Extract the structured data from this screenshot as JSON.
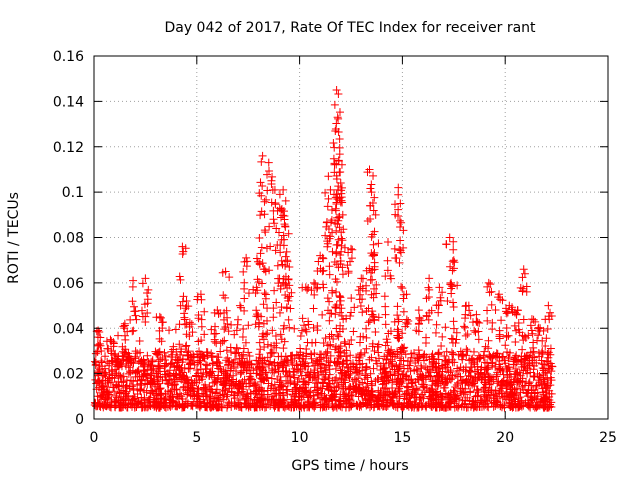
{
  "chart_data": {
    "type": "scatter",
    "title": "Day 042 of 2017, Rate Of TEC Index for receiver rant",
    "xlabel": "GPS time / hours",
    "ylabel": "ROTI / TECUs",
    "xlim": [
      0,
      25
    ],
    "ylim": [
      0,
      0.16
    ],
    "xticks": [
      0,
      5,
      10,
      15,
      20,
      25
    ],
    "xtick_labels": [
      "0",
      "5",
      "10",
      "15",
      "20",
      "25"
    ],
    "yticks": [
      0,
      0.02,
      0.04,
      0.06,
      0.08,
      0.1,
      0.12,
      0.14,
      0.16
    ],
    "ytick_labels": [
      "0",
      "0.02",
      "0.04",
      "0.06",
      "0.08",
      "0.1",
      "0.12",
      "0.14",
      "0.16"
    ],
    "grid": true,
    "marker": "+",
    "color": "#ff0000",
    "series": [
      {
        "name": "ROTI",
        "x": [
          0.2,
          0.8,
          1.5,
          1.9,
          2.5,
          3.2,
          4.3,
          4.5,
          5.2,
          6.0,
          6.4,
          7.1,
          7.4,
          7.9,
          8.1,
          8.2,
          8.5,
          8.8,
          9.1,
          9.2,
          9.3,
          9.5,
          10.3,
          10.7,
          11.0,
          11.4,
          11.5,
          11.8,
          11.85,
          11.9,
          12.0,
          12.1,
          12.5,
          13.0,
          13.4,
          13.5,
          13.7,
          14.3,
          14.8,
          14.9,
          15.2,
          15.8,
          16.3,
          16.8,
          17.3,
          17.5,
          18.1,
          18.6,
          19.2,
          19.7,
          20.2,
          20.6,
          20.9,
          21.3,
          21.7,
          22.1
        ],
        "y": [
          0.039,
          0.035,
          0.042,
          0.061,
          0.062,
          0.045,
          0.076,
          0.052,
          0.055,
          0.048,
          0.065,
          0.05,
          0.071,
          0.058,
          0.073,
          0.116,
          0.113,
          0.101,
          0.092,
          0.101,
          0.085,
          0.067,
          0.058,
          0.06,
          0.072,
          0.107,
          0.101,
          0.145,
          0.133,
          0.114,
          0.104,
          0.09,
          0.075,
          0.062,
          0.11,
          0.1,
          0.09,
          0.078,
          0.102,
          0.095,
          0.055,
          0.048,
          0.062,
          0.058,
          0.08,
          0.07,
          0.05,
          0.046,
          0.06,
          0.055,
          0.05,
          0.048,
          0.066,
          0.044,
          0.04,
          0.05
        ]
      }
    ],
    "background_band": {
      "x_range": [
        0.0,
        22.3
      ],
      "y_typical": [
        0.005,
        0.03
      ],
      "description_points": "dense red + markers throughout 0–22.3 hours, clustered 0.005–0.035 TECUs"
    }
  }
}
